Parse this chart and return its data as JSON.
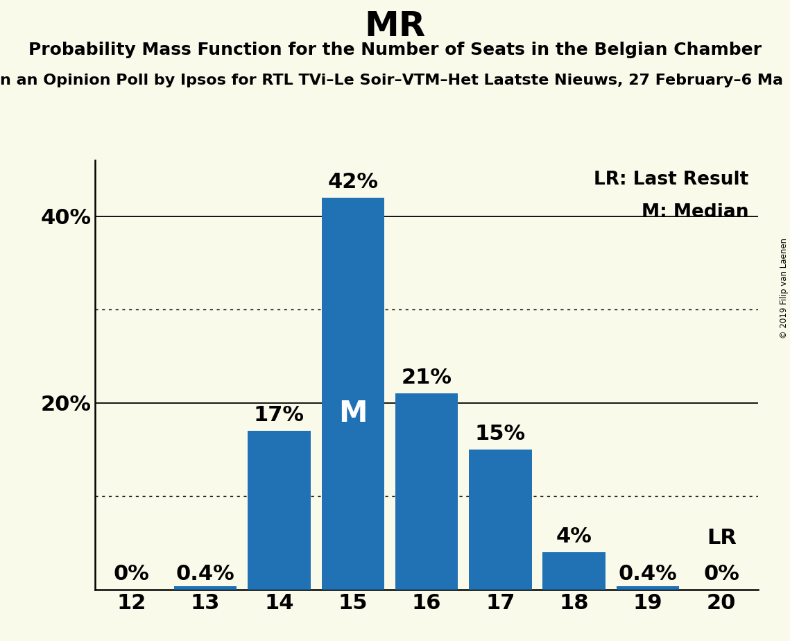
{
  "title": "MR",
  "subtitle": "Probability Mass Function for the Number of Seats in the Belgian Chamber",
  "sub_subtitle": "n an Opinion Poll by Ipsos for RTL TVi–Le Soir–VTM–Het Laatste Nieuws, 27 February–6 Ma",
  "copyright": "© 2019 Filip van Laenen",
  "seats": [
    12,
    13,
    14,
    15,
    16,
    17,
    18,
    19,
    20
  ],
  "probabilities": [
    0.0,
    0.4,
    17.0,
    42.0,
    21.0,
    15.0,
    4.0,
    0.4,
    0.0
  ],
  "bar_color": "#2171b5",
  "background_color": "#fafaeb",
  "median_seat": 15,
  "lr_seat": 20,
  "bar_labels": [
    "0%",
    "0.4%",
    "17%",
    "42%",
    "21%",
    "15%",
    "4%",
    "0.4%",
    "0%"
  ],
  "ylabel_ticks": [
    20,
    40
  ],
  "dotted_lines": [
    10,
    30
  ],
  "solid_lines": [
    20,
    40
  ],
  "ylim": [
    0,
    46
  ],
  "legend_lr": "LR: Last Result",
  "legend_m": "M: Median",
  "title_fontsize": 36,
  "subtitle_fontsize": 18,
  "sub_subtitle_fontsize": 16,
  "tick_fontsize": 22,
  "bar_label_fontsize": 22,
  "legend_fontsize": 19,
  "median_label_fontsize": 30,
  "lr_label_fontsize": 22
}
